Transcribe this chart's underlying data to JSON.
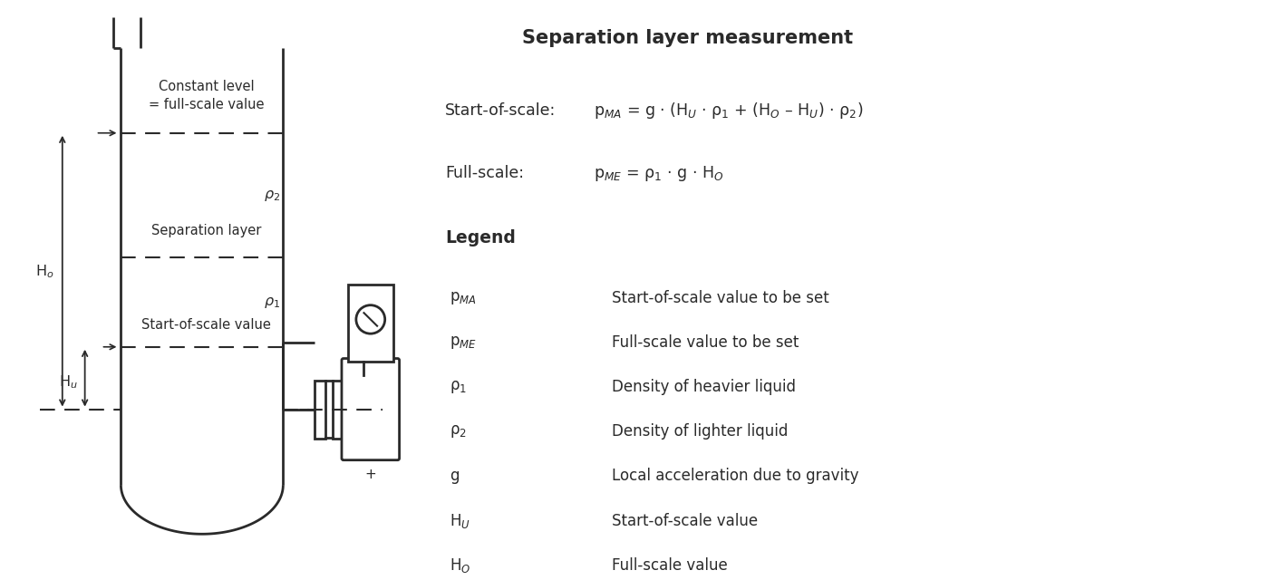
{
  "title": "Separation layer measurement",
  "bg_color": "#ffffff",
  "line_color": "#2a2a2a",
  "legend_title": "Legend",
  "legend_items": [
    [
      "p$_{MA}$",
      "Start-of-scale value to be set"
    ],
    [
      "p$_{ME}$",
      "Full-scale value to be set"
    ],
    [
      "ρ$_1$",
      "Density of heavier liquid"
    ],
    [
      "ρ$_2$",
      "Density of lighter liquid"
    ],
    [
      "g",
      "Local acceleration due to gravity"
    ],
    [
      "H$_U$",
      "Start-of-scale value"
    ],
    [
      "H$_O$",
      "Full-scale value"
    ]
  ],
  "start_of_scale_label": "Start-of-scale:",
  "full_scale_label": "Full-scale:",
  "start_of_scale_formula": "p$_{MA}$ = g · (H$_U$ · ρ$_1$ + (H$_O$ – H$_U$) · ρ$_2$)",
  "full_scale_formula": "p$_{ME}$ = ρ$_1$ · g · H$_O$",
  "const_label": "Constant level\n= full-scale value",
  "sep_label": "Separation layer",
  "sos_label": "Start-of-scale value",
  "rho1_label": "ρ$_1$",
  "rho2_label": "ρ$_2$",
  "Ho_label": "H$_o$",
  "Hu_label": "H$_u$"
}
